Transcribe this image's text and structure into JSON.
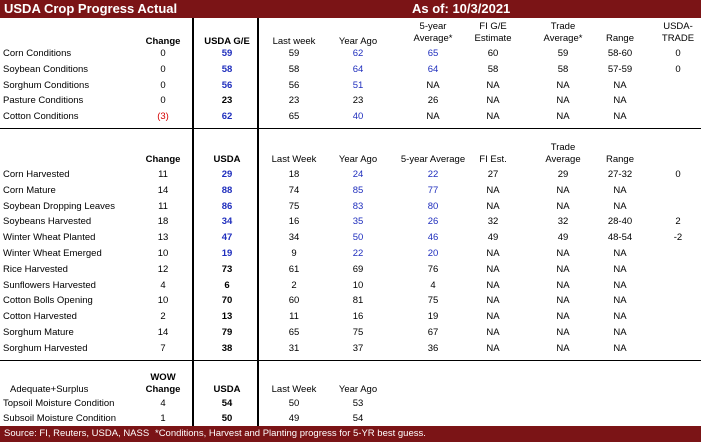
{
  "title": "USDA Crop Progress Actual",
  "as_of": "As of:  10/3/2021",
  "footer": {
    "source": "Source: FI, Reuters, USDA, NASS",
    "note": "*Conditions, Harvest and Planting progress for 5-YR best guess."
  },
  "section1": {
    "headers": {
      "change": "Change",
      "usda": "USDA G/E",
      "last_week": "Last week",
      "year_ago": "Year Ago",
      "five_year_l1": "5-year",
      "five_year_l2": "Average*",
      "fi_l1": "FI G/E",
      "fi_l2": "Estimate",
      "trade_l1": "Trade",
      "trade_l2": "Average*",
      "range": "Range",
      "usda_trade_l1": "USDA-",
      "usda_trade_l2": "TRADE"
    },
    "rows": [
      {
        "label": "Corn Conditions",
        "change": "0",
        "usda": "59",
        "last_week": "59",
        "year_ago": "62",
        "five_year": "65",
        "fi": "60",
        "trade": "59",
        "range": "58-60",
        "usda_trade": "0"
      },
      {
        "label": "Soybean Conditions",
        "change": "0",
        "usda": "58",
        "last_week": "58",
        "year_ago": "64",
        "five_year": "64",
        "fi": "58",
        "trade": "58",
        "range": "57-59",
        "usda_trade": "0"
      },
      {
        "label": "Sorghum Conditions",
        "change": "0",
        "usda": "56",
        "last_week": "56",
        "year_ago": "51",
        "five_year": "NA",
        "fi": "NA",
        "trade": "NA",
        "range": "NA",
        "usda_trade": ""
      },
      {
        "label": "Pasture Conditions",
        "change": "0",
        "usda": "23",
        "last_week": "23",
        "year_ago": "23",
        "five_year": "26",
        "fi": "NA",
        "trade": "NA",
        "range": "NA",
        "usda_trade": ""
      },
      {
        "label": "Cotton Conditions",
        "change": "(3)",
        "usda": "62",
        "last_week": "65",
        "year_ago": "40",
        "five_year": "NA",
        "fi": "NA",
        "trade": "NA",
        "range": "NA",
        "usda_trade": ""
      }
    ]
  },
  "section2": {
    "headers": {
      "change": "Change",
      "usda": "USDA",
      "last_week": "Last Week",
      "year_ago": "Year Ago",
      "five_year": "5-year Average",
      "fi": "FI Est.",
      "trade_l1": "Trade",
      "trade_l2": "Average",
      "range": "Range"
    },
    "rows": [
      {
        "label": "Corn Harvested",
        "change": "11",
        "usda": "29",
        "last_week": "18",
        "year_ago": "24",
        "five_year": "22",
        "fi": "27",
        "trade": "29",
        "range": "27-32",
        "usda_trade": "0"
      },
      {
        "label": "Corn Mature",
        "change": "14",
        "usda": "88",
        "last_week": "74",
        "year_ago": "85",
        "five_year": "77",
        "fi": "NA",
        "trade": "NA",
        "range": "NA",
        "usda_trade": ""
      },
      {
        "label": "Soybean Dropping Leaves",
        "change": "11",
        "usda": "86",
        "last_week": "75",
        "year_ago": "83",
        "five_year": "80",
        "fi": "NA",
        "trade": "NA",
        "range": "NA",
        "usda_trade": ""
      },
      {
        "label": "Soybeans Harvested",
        "change": "18",
        "usda": "34",
        "last_week": "16",
        "year_ago": "35",
        "five_year": "26",
        "fi": "32",
        "trade": "32",
        "range": "28-40",
        "usda_trade": "2"
      },
      {
        "label": "Winter Wheat Planted",
        "change": "13",
        "usda": "47",
        "last_week": "34",
        "year_ago": "50",
        "five_year": "46",
        "fi": "49",
        "trade": "49",
        "range": "48-54",
        "usda_trade": "-2"
      },
      {
        "label": "Winter Wheat Emerged",
        "change": "10",
        "usda": "19",
        "last_week": "9",
        "year_ago": "22",
        "five_year": "20",
        "fi": "NA",
        "trade": "NA",
        "range": "NA",
        "usda_trade": ""
      },
      {
        "label": "Rice Harvested",
        "change": "12",
        "usda": "73",
        "last_week": "61",
        "year_ago": "69",
        "five_year": "76",
        "fi": "NA",
        "trade": "NA",
        "range": "NA",
        "usda_trade": ""
      },
      {
        "label": "Sunflowers Harvested",
        "change": "4",
        "usda": "6",
        "last_week": "2",
        "year_ago": "10",
        "five_year": "4",
        "fi": "NA",
        "trade": "NA",
        "range": "NA",
        "usda_trade": ""
      },
      {
        "label": "Cotton Bolls Opening",
        "change": "10",
        "usda": "70",
        "last_week": "60",
        "year_ago": "81",
        "five_year": "75",
        "fi": "NA",
        "trade": "NA",
        "range": "NA",
        "usda_trade": ""
      },
      {
        "label": "Cotton Harvested",
        "change": "2",
        "usda": "13",
        "last_week": "11",
        "year_ago": "16",
        "five_year": "19",
        "fi": "NA",
        "trade": "NA",
        "range": "NA",
        "usda_trade": ""
      },
      {
        "label": "Sorghum Mature",
        "change": "14",
        "usda": "79",
        "last_week": "65",
        "year_ago": "75",
        "five_year": "67",
        "fi": "NA",
        "trade": "NA",
        "range": "NA",
        "usda_trade": ""
      },
      {
        "label": "Sorghum Harvested",
        "change": "7",
        "usda": "38",
        "last_week": "31",
        "year_ago": "37",
        "five_year": "36",
        "fi": "NA",
        "trade": "NA",
        "range": "NA",
        "usda_trade": ""
      }
    ]
  },
  "section3": {
    "headers": {
      "label": "Adequate+Surplus",
      "change_l1": "WOW",
      "change_l2": "Change",
      "usda": "USDA",
      "last_week": "Last Week",
      "year_ago": "Year Ago"
    },
    "rows": [
      {
        "label": "Topsoil Moisture Condition",
        "change": "4",
        "usda": "54",
        "last_week": "50",
        "year_ago": "53"
      },
      {
        "label": "Subsoil Moisture Condition",
        "change": "1",
        "usda": "50",
        "last_week": "49",
        "year_ago": "54"
      }
    ]
  },
  "colors": {
    "header_bg": "#7b1416",
    "blue": "#1f2ebd",
    "red": "#d40000"
  }
}
